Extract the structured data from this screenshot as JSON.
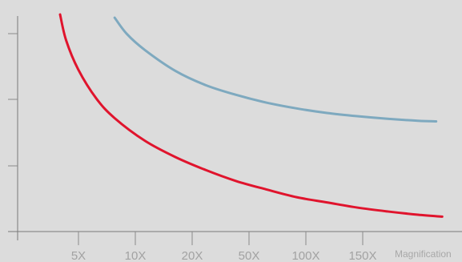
{
  "chart_data": {
    "type": "line",
    "title": "",
    "xlabel": "Magnification",
    "ylabel": "",
    "x_tick_labels": [
      "5X",
      "10X",
      "20X",
      "50X",
      "100X",
      "150X"
    ],
    "y_tick_count": 3,
    "background_color": "#dcdcdc",
    "grid": false,
    "legend": "none",
    "series": [
      {
        "color": "#e0142d",
        "x": [
          0.1,
          0.2,
          0.4,
          0.7,
          1.0,
          1.5,
          2.0,
          2.5,
          3.0,
          3.5,
          4.0,
          4.5,
          5.0,
          5.5,
          6.0,
          6.4
        ],
        "y": [
          3.15,
          2.75,
          2.3,
          1.85,
          1.55,
          1.2,
          0.95,
          0.75,
          0.58,
          0.45,
          0.33,
          0.25,
          0.17,
          0.11,
          0.06,
          0.03
        ]
      },
      {
        "color": "#7ea9bf",
        "x": [
          1.0,
          1.2,
          1.5,
          2.0,
          2.5,
          3.0,
          3.5,
          4.0,
          4.5,
          5.0,
          5.5,
          6.0,
          6.3
        ],
        "y": [
          3.1,
          2.85,
          2.6,
          2.28,
          2.06,
          1.91,
          1.79,
          1.7,
          1.63,
          1.58,
          1.54,
          1.51,
          1.5
        ]
      }
    ],
    "xlim": [
      -0.6,
      6.7
    ],
    "ylim": [
      -0.2,
      3.2
    ]
  }
}
